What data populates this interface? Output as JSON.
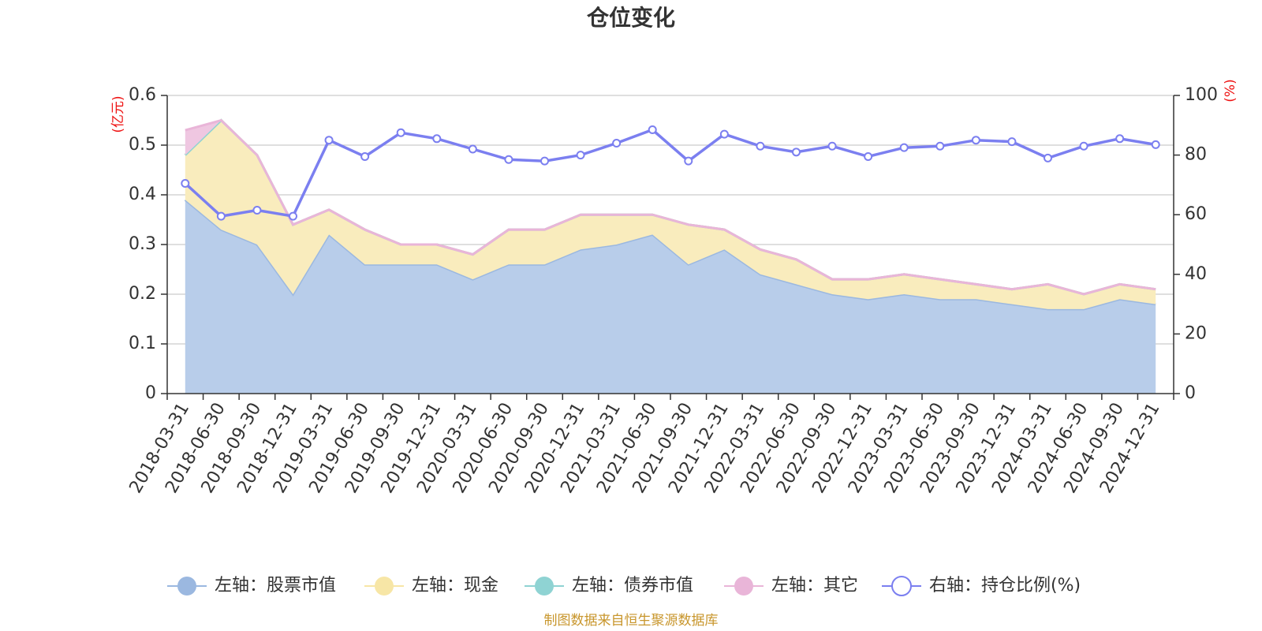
{
  "chart_data": {
    "type": "area",
    "title": "仓位变化",
    "source": "制图数据来自恒生聚源数据库",
    "y_left": {
      "unit": "(亿元)",
      "range": [
        0,
        0.6
      ],
      "ticks": [
        "0",
        "0.1",
        "0.2",
        "0.3",
        "0.4",
        "0.5",
        "0.6"
      ]
    },
    "y_right": {
      "unit": "(%)",
      "range": [
        0,
        100
      ],
      "ticks": [
        "0",
        "20",
        "40",
        "60",
        "80",
        "100"
      ]
    },
    "categories": [
      "2018-03-31",
      "2018-06-30",
      "2018-09-30",
      "2018-12-31",
      "2019-03-31",
      "2019-06-30",
      "2019-09-30",
      "2019-12-31",
      "2020-03-31",
      "2020-06-30",
      "2020-09-30",
      "2020-12-31",
      "2021-03-31",
      "2021-06-30",
      "2021-09-30",
      "2021-12-31",
      "2022-03-31",
      "2022-06-30",
      "2022-09-30",
      "2022-12-31",
      "2023-03-31",
      "2023-06-30",
      "2023-09-30",
      "2023-12-31",
      "2024-03-31",
      "2024-06-30",
      "2024-09-30",
      "2024-12-31"
    ],
    "series": [
      {
        "name": "左轴：股票市值",
        "axis": "left",
        "color": "#9bb8e0",
        "fill": "#b8cdea",
        "values": [
          0.39,
          0.33,
          0.3,
          0.2,
          0.32,
          0.26,
          0.26,
          0.26,
          0.23,
          0.26,
          0.26,
          0.29,
          0.3,
          0.32,
          0.26,
          0.29,
          0.24,
          0.22,
          0.2,
          0.19,
          0.2,
          0.19,
          0.19,
          0.18,
          0.17,
          0.17,
          0.19,
          0.18
        ]
      },
      {
        "name": "左轴：现金",
        "axis": "left",
        "color": "#f7e6a6",
        "fill": "#f9ecbd",
        "values": [
          0.09,
          0.22,
          0.18,
          0.14,
          0.05,
          0.07,
          0.04,
          0.04,
          0.05,
          0.07,
          0.07,
          0.07,
          0.06,
          0.04,
          0.08,
          0.04,
          0.05,
          0.05,
          0.03,
          0.04,
          0.04,
          0.04,
          0.03,
          0.03,
          0.05,
          0.03,
          0.03,
          0.03
        ]
      },
      {
        "name": "左轴：债券市值",
        "axis": "left",
        "color": "#8fd3d3",
        "fill": "#a8dcdc",
        "values": [
          0,
          0,
          0,
          0,
          0,
          0,
          0,
          0,
          0,
          0,
          0,
          0,
          0,
          0,
          0,
          0,
          0,
          0,
          0,
          0,
          0,
          0,
          0,
          0,
          0,
          0,
          0,
          0
        ]
      },
      {
        "name": "左轴：其它",
        "axis": "left",
        "color": "#e9b5d8",
        "fill": "#efc7e1",
        "values": [
          0.05,
          0.0,
          0.0,
          0.0,
          0.0,
          0.0,
          0.0,
          0.0,
          0.0,
          0.0,
          0.0,
          0.0,
          0.0,
          0.0,
          0.0,
          0.0,
          0.0,
          0.0,
          0.0,
          0.0,
          0.0,
          0.0,
          0.0,
          0.0,
          0.0,
          0.0,
          0.0,
          0.0
        ]
      },
      {
        "name": "右轴：持仓比例(%)",
        "axis": "right",
        "color": "#7b7ff0",
        "type": "line",
        "values": [
          70.5,
          59.5,
          61.5,
          59.5,
          85,
          79.5,
          87.5,
          85.5,
          82,
          78.5,
          78,
          80,
          84,
          88.5,
          78,
          87,
          83,
          81,
          83,
          79.5,
          82.5,
          83,
          85,
          84.5,
          79,
          83,
          85.5,
          83.5
        ]
      }
    ]
  }
}
